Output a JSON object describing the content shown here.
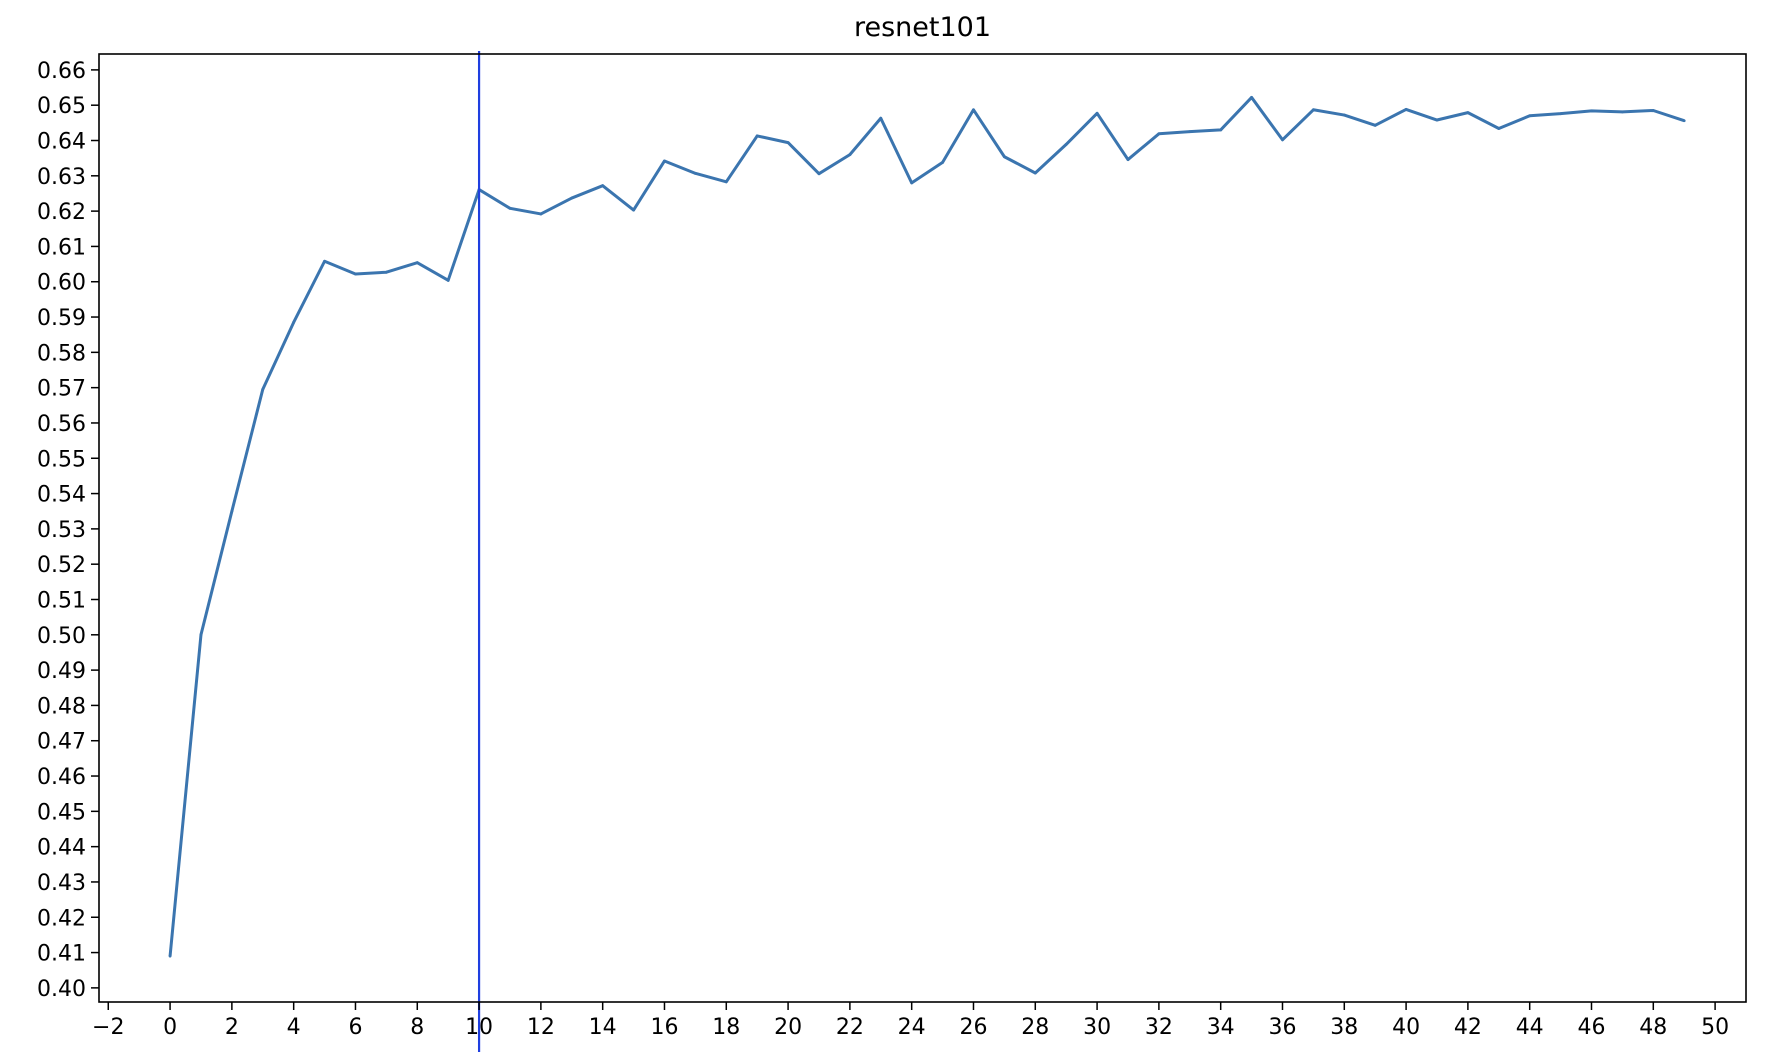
{
  "chart_data": {
    "type": "line",
    "title": "resnet101",
    "xlabel": "",
    "ylabel": "",
    "xlim": [
      -2.3,
      51
    ],
    "ylim": [
      0.396,
      0.6645
    ],
    "xticks": [
      -2,
      0,
      2,
      4,
      6,
      8,
      10,
      12,
      14,
      16,
      18,
      20,
      22,
      24,
      26,
      28,
      30,
      32,
      34,
      36,
      38,
      40,
      42,
      44,
      46,
      48,
      50
    ],
    "xtick_labels": [
      "−2",
      "0",
      "2",
      "4",
      "6",
      "8",
      "10",
      "12",
      "14",
      "16",
      "18",
      "20",
      "22",
      "24",
      "26",
      "28",
      "30",
      "32",
      "34",
      "36",
      "38",
      "40",
      "42",
      "44",
      "46",
      "48",
      "50"
    ],
    "yticks": [
      0.4,
      0.41,
      0.42,
      0.43,
      0.44,
      0.45,
      0.46,
      0.47,
      0.48,
      0.49,
      0.5,
      0.51,
      0.52,
      0.53,
      0.54,
      0.55,
      0.56,
      0.57,
      0.58,
      0.59,
      0.6,
      0.61,
      0.62,
      0.63,
      0.64,
      0.65,
      0.66
    ],
    "ytick_labels": [
      "0.40",
      "0.41",
      "0.42",
      "0.43",
      "0.44",
      "0.45",
      "0.46",
      "0.47",
      "0.48",
      "0.49",
      "0.50",
      "0.51",
      "0.52",
      "0.53",
      "0.54",
      "0.55",
      "0.56",
      "0.57",
      "0.58",
      "0.59",
      "0.60",
      "0.61",
      "0.62",
      "0.63",
      "0.64",
      "0.65",
      "0.66"
    ],
    "grid": false,
    "series": [
      {
        "color": "#3b75af",
        "x": [
          0,
          1,
          2,
          3,
          4,
          5,
          6,
          7,
          8,
          9,
          10,
          11,
          12,
          13,
          14,
          15,
          16,
          17,
          18,
          19,
          20,
          21,
          22,
          23,
          24,
          25,
          26,
          27,
          28,
          29,
          30,
          31,
          32,
          33,
          34,
          35,
          36,
          37,
          38,
          39,
          40,
          41,
          42,
          43,
          44,
          45,
          46,
          47,
          48,
          49
        ],
        "y": [
          0.409,
          0.5,
          0.535,
          0.5695,
          0.5885,
          0.6058,
          0.6022,
          0.6027,
          0.6054,
          0.6004,
          0.6261,
          0.6208,
          0.6192,
          0.6237,
          0.6272,
          0.6203,
          0.6342,
          0.6307,
          0.6283,
          0.6413,
          0.6394,
          0.6306,
          0.636,
          0.6463,
          0.628,
          0.6338,
          0.6487,
          0.6354,
          0.6308,
          0.6389,
          0.6477,
          0.6346,
          0.6419,
          0.6425,
          0.643,
          0.6522,
          0.6402,
          0.6487,
          0.6472,
          0.6443,
          0.6488,
          0.6458,
          0.6479,
          0.6434,
          0.647,
          0.6476,
          0.6484,
          0.6481,
          0.6485,
          0.6456
        ]
      }
    ],
    "vline": {
      "x": 10,
      "color": "#1f3fe0"
    },
    "frame_color": "#000000"
  }
}
